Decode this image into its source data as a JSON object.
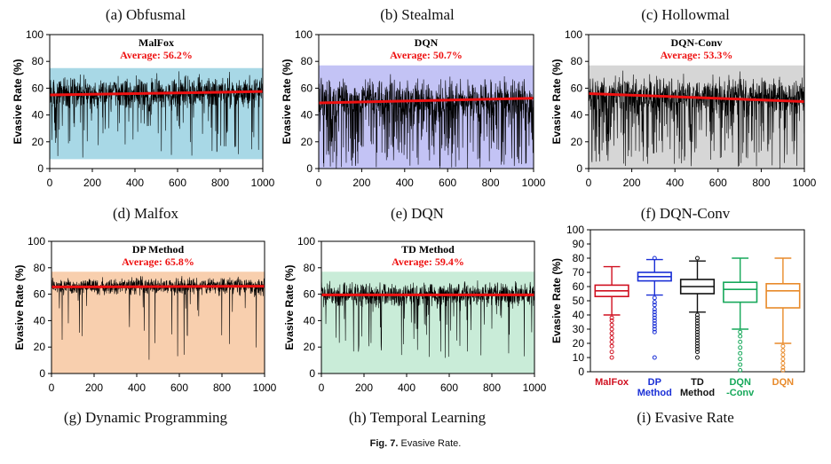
{
  "figure": {
    "caption_label": "Fig. 7.",
    "caption_text": "Evasive Rate."
  },
  "colors": {
    "trace": "#000000",
    "average_line": "#ee1111",
    "average_text": "#ee1111"
  },
  "chart_data": [
    {
      "type": "line",
      "panel_title": "(a) Obfusmal",
      "inset_title": "MalFox",
      "average_label": "Average: 56.2%",
      "band_color": "#a8d8e6",
      "band_range": [
        7,
        75
      ],
      "ylabel": "Evasive Rate (%)",
      "xlim": [
        0,
        1000
      ],
      "ylim": [
        0,
        100
      ],
      "xticks": [
        0,
        200,
        400,
        600,
        800,
        1000
      ],
      "yticks": [
        0,
        20,
        40,
        60,
        80,
        100
      ],
      "series": [
        {
          "kind": "trace",
          "center": 57,
          "spread": 9,
          "dip_prob": 0.12,
          "dip_floor": 8,
          "max": 75
        },
        {
          "kind": "trend",
          "x": [
            0,
            1000
          ],
          "y": [
            55,
            57.5
          ]
        }
      ]
    },
    {
      "type": "line",
      "panel_title": "(b) Stealmal",
      "inset_title": "DQN",
      "average_label": "Average: 50.7%",
      "band_color": "#c3c3f5",
      "band_range": [
        0,
        77
      ],
      "ylabel": "Evasive Rate (%)",
      "xlim": [
        0,
        1000
      ],
      "ylim": [
        0,
        100
      ],
      "xticks": [
        0,
        200,
        400,
        600,
        800,
        1000
      ],
      "yticks": [
        0,
        20,
        40,
        60,
        80,
        100
      ],
      "series": [
        {
          "kind": "trace",
          "center": 52,
          "spread": 12,
          "dip_prob": 0.28,
          "dip_floor": 0,
          "max": 79
        },
        {
          "kind": "trend",
          "x": [
            0,
            1000
          ],
          "y": [
            49,
            52.5
          ]
        }
      ]
    },
    {
      "type": "line",
      "panel_title": "(c) Hollowmal",
      "inset_title": "DQN-Conv",
      "average_label": "Average: 53.3%",
      "band_color": "#d6d6d6",
      "band_range": [
        0,
        77
      ],
      "ylabel": "Evasive Rate (%)",
      "xlim": [
        0,
        1000
      ],
      "ylim": [
        0,
        100
      ],
      "xticks": [
        0,
        200,
        400,
        600,
        800,
        1000
      ],
      "yticks": [
        0,
        20,
        40,
        60,
        80,
        100
      ],
      "series": [
        {
          "kind": "trace",
          "center": 55,
          "spread": 11,
          "dip_prob": 0.22,
          "dip_floor": 0,
          "max": 80
        },
        {
          "kind": "trend",
          "x": [
            0,
            1000
          ],
          "y": [
            56,
            50
          ]
        }
      ]
    },
    {
      "type": "line",
      "panel_title": "(d) Malfox",
      "inset_title": "DP Method",
      "average_label": "Average: 65.8%",
      "band_color": "#f8cfae",
      "band_range": [
        0,
        77
      ],
      "ylabel": "Evasive Rate (%)",
      "xlim": [
        0,
        1000
      ],
      "ylim": [
        0,
        100
      ],
      "xticks": [
        0,
        200,
        400,
        600,
        800,
        1000
      ],
      "yticks": [
        0,
        20,
        40,
        60,
        80,
        100
      ],
      "series": [
        {
          "kind": "trace",
          "center": 66,
          "spread": 5,
          "dip_prob": 0.05,
          "dip_floor": 10,
          "max": 78
        },
        {
          "kind": "trend",
          "x": [
            0,
            1000
          ],
          "y": [
            65.5,
            66
          ]
        }
      ]
    },
    {
      "type": "line",
      "panel_title": "(e) DQN",
      "inset_title": "TD Method",
      "average_label": "Average: 59.4%",
      "band_color": "#c9ecd8",
      "band_range": [
        0,
        77
      ],
      "ylabel": "Evasive Rate (%)",
      "xlim": [
        0,
        1000
      ],
      "ylim": [
        0,
        100
      ],
      "xticks": [
        0,
        200,
        400,
        600,
        800,
        1000
      ],
      "yticks": [
        0,
        20,
        40,
        60,
        80,
        100
      ],
      "series": [
        {
          "kind": "trace",
          "center": 60,
          "spread": 7,
          "dip_prob": 0.08,
          "dip_floor": 10,
          "max": 78
        },
        {
          "kind": "trend",
          "x": [
            0,
            1000
          ],
          "y": [
            59.5,
            59.5
          ]
        }
      ]
    },
    {
      "type": "box",
      "panel_title": "(f) DQN-Conv",
      "ylabel": "Evasive Rate (%)",
      "ylim": [
        0,
        100
      ],
      "yticks": [
        0,
        10,
        20,
        30,
        40,
        50,
        60,
        70,
        80,
        90,
        100
      ],
      "boxes": [
        {
          "name": "MalFox",
          "label_lines": [
            "MalFox"
          ],
          "color": "#d01020",
          "whislo": 40,
          "q1": 53,
          "med": 57,
          "q3": 61,
          "whishi": 74,
          "fliers": [
            38,
            36,
            33,
            30,
            27,
            24,
            21,
            18,
            14,
            10
          ]
        },
        {
          "name": "DP Method",
          "label_lines": [
            "DP",
            "Method"
          ],
          "color": "#1a2fd6",
          "whislo": 54,
          "q1": 64,
          "med": 67,
          "q3": 70,
          "whishi": 79,
          "fliers": [
            52,
            49,
            47,
            44,
            42,
            40,
            38,
            36,
            34,
            32,
            30,
            28,
            10,
            80
          ]
        },
        {
          "name": "TD Method",
          "label_lines": [
            "TD",
            "Method"
          ],
          "color": "#111111",
          "whislo": 42,
          "q1": 55,
          "med": 60,
          "q3": 65,
          "whishi": 78,
          "fliers": [
            40,
            38,
            36,
            34,
            32,
            30,
            28,
            26,
            24,
            22,
            20,
            18,
            16,
            14,
            10,
            80
          ]
        },
        {
          "name": "DQN -Conv",
          "label_lines": [
            "DQN",
            "-Conv"
          ],
          "color": "#16a85a",
          "whislo": 30,
          "q1": 49,
          "med": 58,
          "q3": 63,
          "whishi": 80,
          "fliers": [
            28,
            25,
            21,
            17,
            13,
            9,
            5,
            1
          ]
        },
        {
          "name": "DQN",
          "label_lines": [
            "DQN"
          ],
          "color": "#e88a2a",
          "whislo": 20,
          "q1": 45,
          "med": 57,
          "q3": 62,
          "whishi": 80,
          "fliers": [
            18,
            15,
            12,
            9,
            6,
            3,
            1
          ]
        }
      ]
    }
  ],
  "bottom_titles": [
    "(g) Dynamic Programming",
    "(h) Temporal Learning",
    "(i) Evasive Rate"
  ]
}
